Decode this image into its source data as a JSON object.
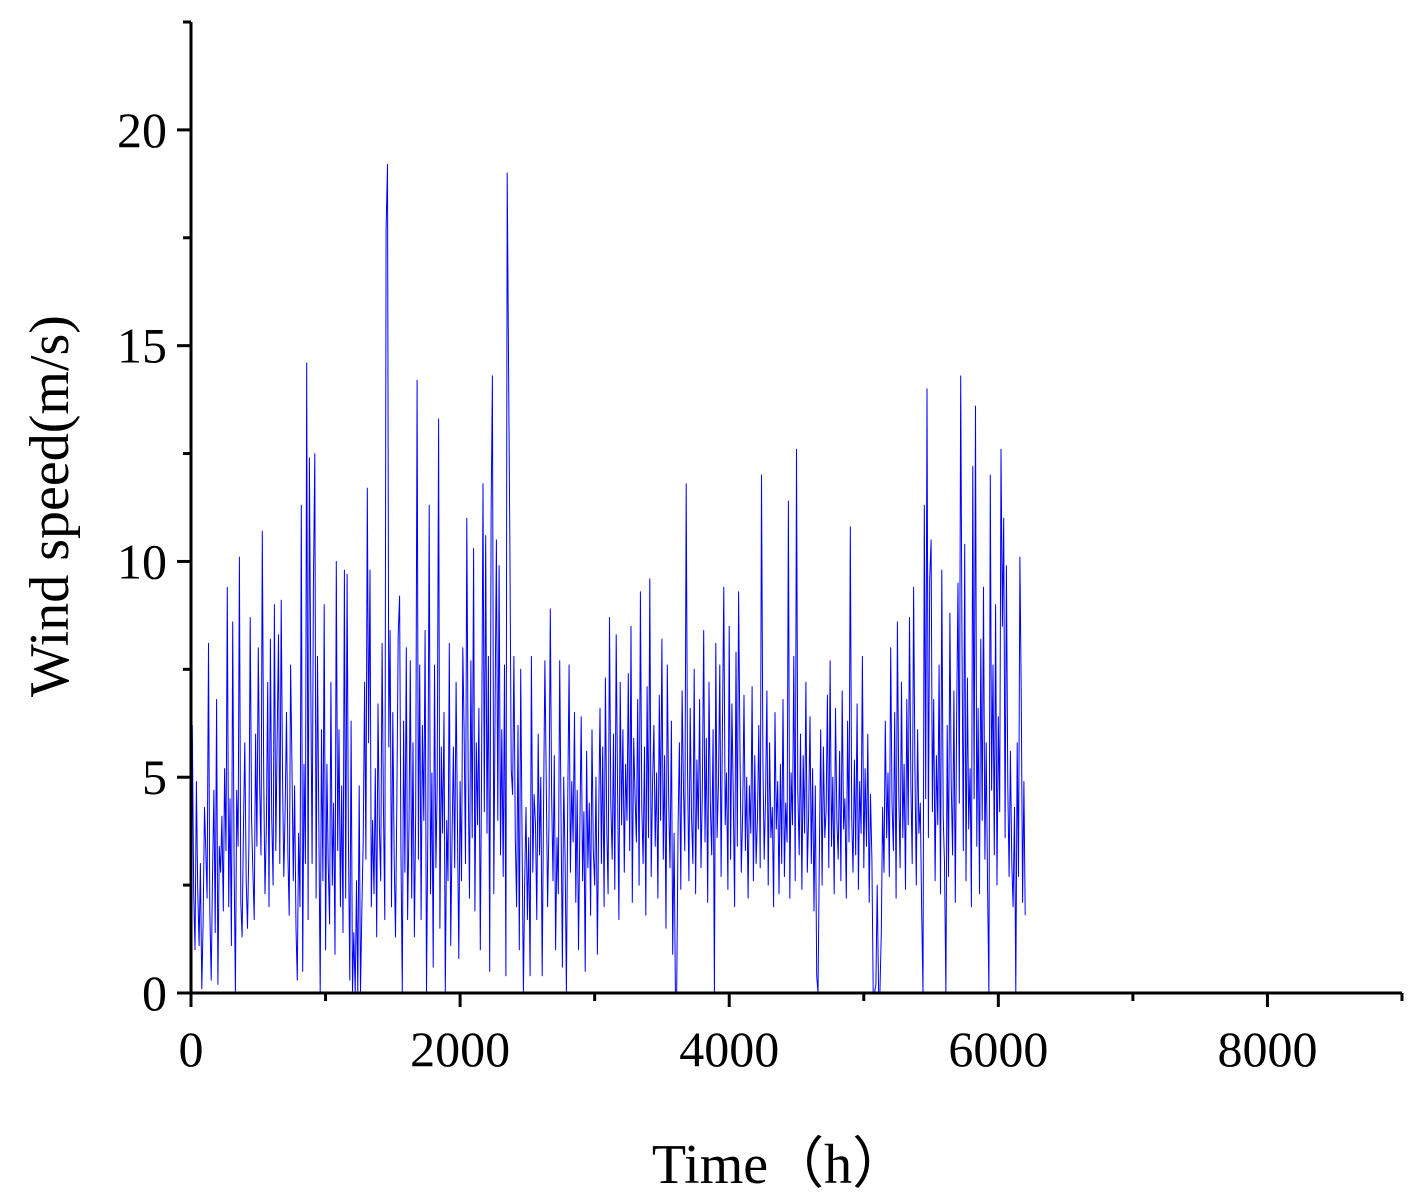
{
  "chart_data": {
    "type": "line",
    "title": "",
    "xlabel": "Time（h）",
    "ylabel": "Wind speed(m/s)",
    "xlim": [
      0,
      9000
    ],
    "ylim": [
      0,
      22.5
    ],
    "x_ticks": [
      0,
      2000,
      4000,
      6000,
      8000
    ],
    "y_ticks": [
      0,
      5,
      10,
      15,
      20
    ],
    "x_minor_ticks": [
      1000,
      3000,
      5000,
      7000,
      9000
    ],
    "y_minor_ticks": [
      2.5,
      7.5,
      12.5,
      17.5,
      22.5
    ],
    "grid": false,
    "legend": "none",
    "line_color": "#0000ff",
    "sampling_step_hours": 10,
    "series": [
      {
        "values": [
          1.2,
          6.2,
          2.3,
          1.0,
          4.9,
          2.4,
          1.1,
          3.0,
          0.1,
          1.6,
          4.3,
          3.3,
          2.2,
          8.1,
          1.9,
          0.3,
          2.7,
          4.7,
          1.4,
          6.8,
          0.2,
          3.4,
          2.8,
          4.1,
          1.9,
          5.2,
          3.3,
          9.4,
          2.0,
          4.5,
          1.1,
          8.6,
          3.0,
          0.0,
          4.7,
          3.4,
          10.1,
          2.1,
          1.3,
          3.9,
          5.8,
          2.6,
          1.5,
          3.4,
          8.7,
          4.0,
          2.8,
          1.7,
          6.0,
          3.4,
          8.0,
          4.9,
          3.2,
          10.7,
          5.0,
          2.3,
          3.9,
          7.2,
          2.0,
          8.2,
          4.1,
          2.5,
          9.0,
          3.3,
          5.8,
          8.3,
          3.0,
          9.1,
          5.1,
          2.7,
          4.3,
          6.5,
          3.2,
          1.8,
          7.6,
          5.4,
          2.6,
          4.8,
          1.5,
          0.3,
          3.7,
          2.0,
          11.3,
          0.5,
          5.3,
          3.0,
          14.6,
          1.7,
          12.4,
          7.1,
          3.0,
          9.4,
          12.5,
          2.2,
          7.8,
          4.0,
          0.0,
          6.1,
          2.6,
          9.0,
          1.0,
          5.3,
          3.0,
          1.6,
          7.2,
          2.5,
          4.4,
          0.9,
          10.0,
          3.3,
          6.1,
          2.0,
          4.8,
          1.4,
          9.8,
          2.2,
          9.7,
          3.6,
          0.3,
          6.3,
          0.0,
          1.4,
          0.0,
          2.6,
          0.0,
          4.8,
          0.0,
          2.0,
          3.5,
          7.2,
          3.1,
          11.7,
          5.8,
          9.8,
          2.0,
          4.0,
          2.3,
          5.2,
          1.3,
          6.7,
          3.8,
          2.6,
          8.1,
          4.4,
          1.7,
          17.7,
          19.2,
          5.7,
          8.4,
          2.0,
          6.5,
          3.1,
          1.3,
          4.6,
          8.3,
          9.2,
          3.4,
          0.0,
          6.3,
          2.8,
          8.0,
          1.7,
          3.9,
          7.7,
          2.2,
          5.8,
          1.3,
          4.2,
          14.2,
          3.1,
          7.6,
          1.7,
          6.2,
          4.0,
          8.4,
          0.0,
          3.7,
          11.3,
          2.3,
          5.1,
          0.6,
          7.6,
          2.9,
          4.8,
          13.3,
          1.5,
          5.7,
          3.7,
          6.5,
          0.0,
          4.0,
          2.6,
          8.1,
          1.1,
          3.5,
          5.7,
          2.9,
          7.2,
          4.0,
          0.8,
          4.9,
          2.6,
          8.0,
          6.1,
          3.0,
          11.0,
          5.0,
          2.2,
          7.7,
          3.6,
          10.3,
          1.9,
          5.8,
          3.9,
          6.6,
          1.0,
          5.3,
          11.8,
          4.2,
          10.6,
          3.7,
          7.8,
          0.5,
          11.1,
          14.3,
          2.3,
          6.7,
          10.5,
          4.0,
          9.9,
          3.2,
          6.1,
          2.7,
          7.6,
          0.4,
          19.0,
          14.4,
          10.3,
          5.2,
          4.6,
          7.8,
          3.6,
          2.0,
          6.2,
          1.0,
          7.5,
          3.8,
          0.0,
          2.6,
          4.3,
          1.7,
          3.6,
          0.4,
          7.8,
          2.8,
          4.6,
          3.9,
          1.7,
          6.0,
          3.2,
          5.0,
          0.4,
          4.2,
          7.7,
          5.0,
          2.0,
          3.8,
          8.9,
          4.6,
          2.6,
          5.5,
          1.0,
          3.6,
          2.3,
          7.7,
          4.2,
          0.6,
          5.0,
          3.1,
          0.0,
          4.6,
          7.6,
          2.8,
          4.9,
          3.5,
          6.5,
          2.1,
          4.7,
          1.0,
          3.9,
          6.4,
          2.6,
          4.2,
          0.5,
          5.6,
          2.9,
          4.4,
          1.8,
          6.1,
          3.3,
          2.5,
          5.0,
          0.9,
          4.1,
          6.6,
          3.0,
          5.7,
          2.0,
          7.3,
          3.8,
          2.3,
          8.7,
          4.4,
          3.1,
          6.0,
          2.4,
          8.3,
          4.9,
          1.7,
          7.2,
          3.9,
          6.1,
          2.8,
          5.3,
          4.0,
          7.4,
          3.3,
          8.5,
          2.1,
          5.9,
          4.6,
          3.5,
          6.8,
          2.5,
          9.3,
          4.3,
          3.0,
          5.7,
          1.8,
          7.1,
          3.6,
          9.6,
          2.7,
          4.8,
          6.2,
          3.4,
          5.1,
          2.2,
          6.9,
          4.0,
          8.2,
          3.1,
          5.5,
          1.5,
          7.6,
          4.4,
          2.9,
          6.3,
          0.9,
          3.7,
          0.0,
          0.0,
          3.9,
          5.8,
          2.4,
          7.0,
          4.7,
          3.3,
          11.8,
          5.2,
          2.6,
          6.6,
          4.1,
          3.0,
          7.5,
          2.3,
          5.4,
          3.8,
          6.8,
          2.9,
          4.6,
          8.4,
          3.5,
          5.9,
          2.1,
          7.2,
          4.3,
          3.2,
          6.1,
          0.0,
          8.1,
          3.6,
          4.9,
          7.6,
          2.7,
          6.3,
          9.4,
          3.9,
          5.1,
          2.4,
          8.5,
          3.1,
          6.7,
          4.5,
          2.0,
          7.9,
          3.4,
          9.3,
          5.6,
          2.8,
          4.2,
          6.9,
          3.3,
          5.0,
          2.2,
          4.8,
          3.7,
          7.1,
          2.6,
          5.5,
          3.0,
          4.1,
          6.2,
          2.9,
          12.0,
          5.4,
          3.1,
          4.6,
          7.0,
          2.5,
          5.8,
          3.6,
          4.3,
          2.0,
          6.5,
          3.8,
          4.9,
          2.3,
          5.3,
          3.0,
          6.8,
          2.7,
          4.4,
          3.5,
          11.4,
          2.2,
          5.1,
          3.9,
          7.8,
          2.6,
          12.6,
          4.7,
          3.2,
          6.0,
          2.4,
          5.5,
          3.7,
          7.2,
          2.8,
          4.1,
          6.4,
          3.0,
          5.2,
          1.9,
          4.8,
          0.4,
          0.0,
          3.3,
          6.1,
          2.5,
          5.7,
          3.6,
          4.2,
          6.9,
          2.9,
          7.7,
          3.4,
          5.0,
          2.3,
          6.6,
          4.0,
          3.1,
          5.6,
          2.6,
          7.0,
          3.8,
          4.5,
          2.2,
          6.3,
          3.5,
          10.8,
          4.1,
          2.8,
          5.4,
          3.2,
          6.7,
          2.4,
          4.9,
          3.7,
          7.8,
          2.9,
          5.2,
          3.4,
          6.0,
          2.1,
          4.6,
          3.1,
          0.0,
          0.0,
          0.2,
          2.5,
          0.0,
          0.0,
          1.4,
          4.3,
          2.8,
          6.3,
          3.6,
          5.1,
          2.7,
          8.0,
          4.4,
          3.3,
          6.5,
          2.2,
          8.6,
          4.6,
          2.9,
          7.2,
          3.6,
          5.3,
          2.4,
          6.8,
          3.9,
          8.7,
          4.8,
          3.0,
          9.4,
          5.3,
          2.5,
          6.1,
          3.7,
          4.4,
          2.0,
          0.0,
          11.3,
          4.5,
          14.0,
          3.6,
          9.6,
          10.5,
          4.2,
          6.8,
          2.6,
          5.5,
          3.9,
          7.6,
          2.3,
          9.8,
          4.1,
          3.0,
          0.0,
          6.2,
          2.7,
          8.8,
          4.9,
          3.2,
          7.0,
          2.1,
          6.3,
          9.5,
          4.4,
          14.3,
          8.1,
          3.3,
          10.4,
          2.6,
          7.3,
          3.8,
          5.2,
          2.0,
          12.2,
          4.5,
          13.6,
          3.4,
          6.6,
          2.3,
          8.2,
          4.0,
          9.4,
          3.1,
          5.8,
          2.4,
          0.0,
          12.0,
          4.7,
          7.6,
          3.2,
          9.0,
          2.5,
          6.4,
          4.2,
          12.6,
          8.5,
          11.0,
          3.6,
          9.9,
          4.8,
          2.7,
          5.6,
          3.0,
          2.0,
          4.3,
          0.0,
          5.8,
          2.7,
          10.1,
          7.0,
          2.1,
          4.9,
          1.8
        ]
      }
    ]
  }
}
